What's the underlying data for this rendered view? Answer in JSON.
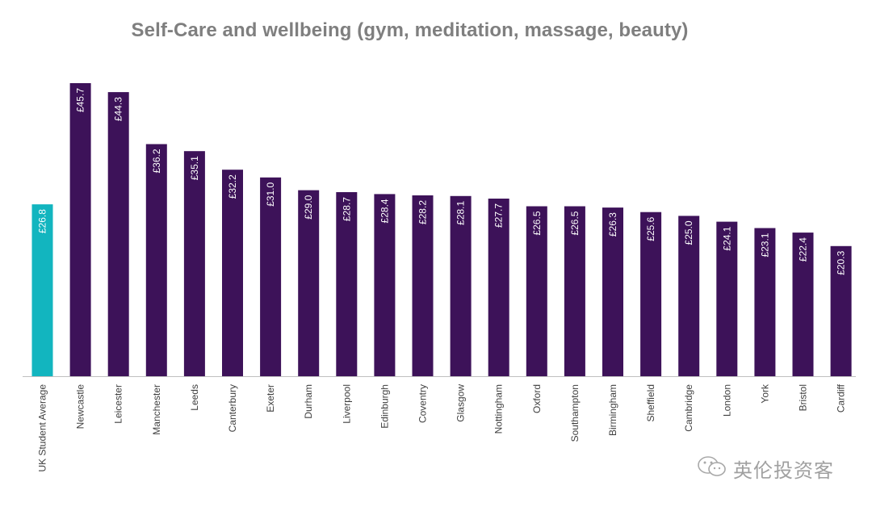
{
  "chart_data": {
    "type": "bar",
    "title": "Self-Care and wellbeing (gym, meditation, massage, beauty)",
    "xlabel": "",
    "ylabel": "",
    "ylim": [
      0,
      46
    ],
    "grid": false,
    "value_prefix": "£",
    "categories": [
      "UK Student Average",
      "Newcastle",
      "Leicester",
      "Manchester",
      "Leeds",
      "Canterbury",
      "Exeter",
      "Durham",
      "Liverpool",
      "Edinburgh",
      "Coventry",
      "Glasgow",
      "Nottingham",
      "Oxford",
      "Southampton",
      "Birmingham",
      "Sheffield",
      "Cambridge",
      "London",
      "York",
      "Bristol",
      "Cardiff"
    ],
    "values": [
      26.8,
      45.7,
      44.3,
      36.2,
      35.1,
      32.2,
      31.0,
      29.0,
      28.7,
      28.4,
      28.2,
      28.1,
      27.7,
      26.5,
      26.5,
      26.3,
      25.6,
      25.0,
      24.1,
      23.1,
      22.4,
      20.3
    ],
    "data_labels": [
      "£26.8",
      "£45.7",
      "£44.3",
      "£36.2",
      "£35.1",
      "£32.2",
      "£31.0",
      "£29.0",
      "£28.7",
      "£28.4",
      "£28.2",
      "£28.1",
      "£27.7",
      "£26.5",
      "£26.5",
      "£26.3",
      "£25.6",
      "£25.0",
      "£24.1",
      "£23.1",
      "£22.4",
      "£20.3"
    ],
    "colors": {
      "highlight": "#12b5bf",
      "default": "#3d1259",
      "axis": "#bfbfbf",
      "label": "#ffffff"
    },
    "highlight_index": 0
  },
  "watermark": {
    "icon": "wechat-icon",
    "text": "英伦投资客"
  }
}
